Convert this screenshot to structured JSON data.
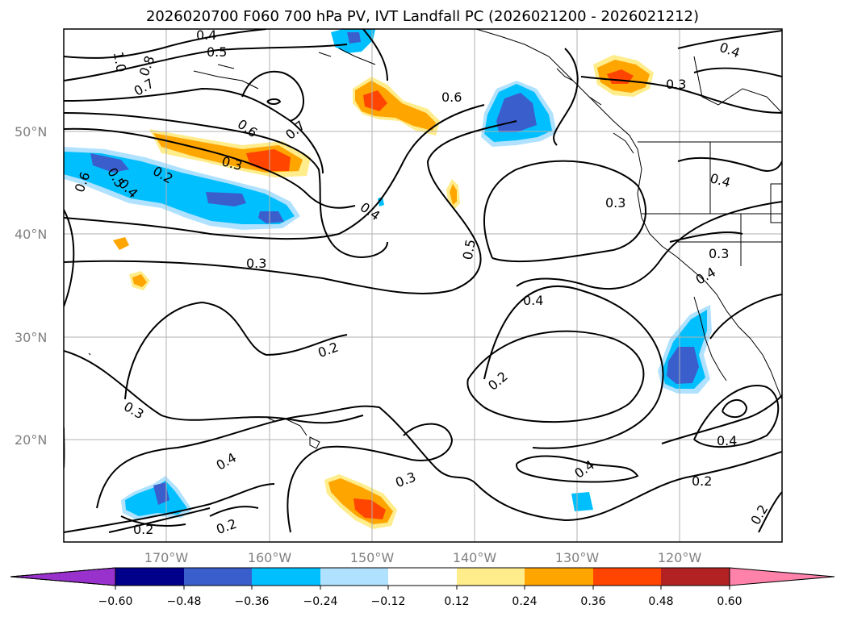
{
  "title": "2026020700 F060 700 hPa PV, IVT Landfall PC (2026021200 - 2026021212)",
  "lat_labels": [
    "50°N",
    "40°N",
    "30°N",
    "20°N"
  ],
  "lon_labels": [
    "170°W",
    "160°W",
    "150°W",
    "140°W",
    "130°W",
    "120°W"
  ],
  "contour_labels": [
    {
      "t": "0.4"
    },
    {
      "t": "0.5"
    },
    {
      "t": "1.0"
    },
    {
      "t": "0.8"
    },
    {
      "t": "0.7"
    },
    {
      "t": "0.6"
    },
    {
      "t": "0.7"
    },
    {
      "t": "0.3"
    },
    {
      "t": "0.6"
    },
    {
      "t": "0.5"
    },
    {
      "t": "0.4"
    },
    {
      "t": "0.2"
    },
    {
      "t": "0.6"
    },
    {
      "t": "0.4"
    },
    {
      "t": "0.4"
    },
    {
      "t": "0.3"
    },
    {
      "t": "0.3"
    },
    {
      "t": "0.4"
    },
    {
      "t": "0.5"
    },
    {
      "t": "0.3"
    },
    {
      "t": "0.4"
    },
    {
      "t": "0.2"
    },
    {
      "t": "0.2"
    },
    {
      "t": "0.3"
    },
    {
      "t": "0.4"
    },
    {
      "t": "0.4"
    },
    {
      "t": "0.3"
    },
    {
      "t": "0.2"
    },
    {
      "t": "0.2"
    },
    {
      "t": "0.4"
    },
    {
      "t": "0.2"
    },
    {
      "t": "0.2"
    },
    {
      "t": "0.3"
    },
    {
      "t": "0.4"
    }
  ],
  "colorbar": {
    "ticks": [
      "−0.60",
      "−0.48",
      "−0.36",
      "−0.24",
      "−0.12",
      "0.12",
      "0.24",
      "0.36",
      "0.48",
      "0.60"
    ],
    "colors": [
      "#9932cc",
      "#00008b",
      "#3a5fcd",
      "#00bfff",
      "#b0e2ff",
      "#ffffff",
      "#ffec8b",
      "#ffa500",
      "#ff4500",
      "#b22222",
      "#ff82ab"
    ]
  },
  "map_colors": {
    "contour": "#000000",
    "grid": "#b0b0b0",
    "coast": "#000000"
  }
}
